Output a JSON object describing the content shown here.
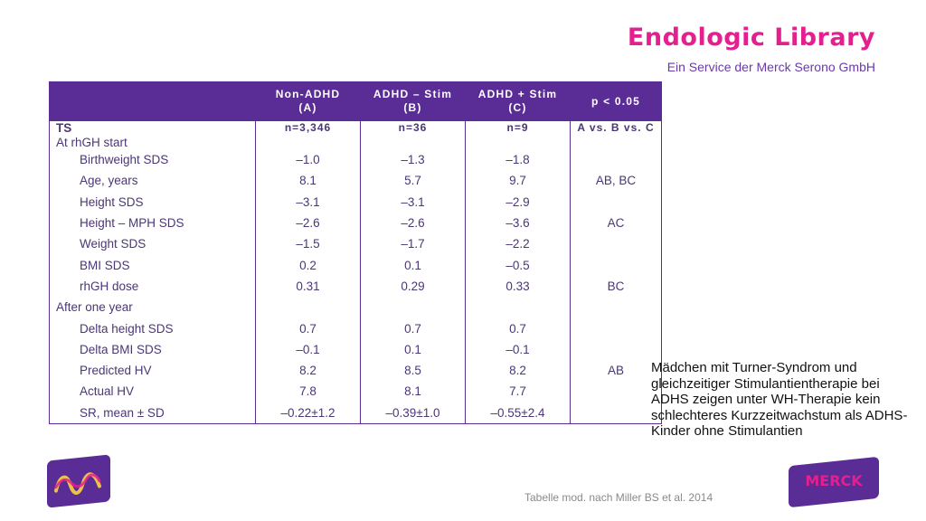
{
  "brand": "Endologic Library",
  "subtitle": "Ein Service der Merck Serono GmbH",
  "table": {
    "headers": [
      {
        "l1": "Non-ADHD",
        "l2": "(A)"
      },
      {
        "l1": "ADHD – Stim",
        "l2": "(B)"
      },
      {
        "l1": "ADHD + Stim",
        "l2": "(C)"
      },
      {
        "l1": "p < 0.05",
        "l2": ""
      }
    ],
    "subheader": {
      "label": "TS",
      "sub": "At rhGH start",
      "n": [
        "n=3,346",
        "n=36",
        "n=9"
      ],
      "p": "A vs. B vs. C"
    },
    "rows": [
      {
        "label": "Birthweight SDS",
        "a": "–1.0",
        "b": "–1.3",
        "c": "–1.8",
        "p": ""
      },
      {
        "label": "Age, years",
        "a": "8.1",
        "b": "5.7",
        "c": "9.7",
        "p": "AB, BC"
      },
      {
        "label": "Height SDS",
        "a": "–3.1",
        "b": "–3.1",
        "c": "–2.9",
        "p": ""
      },
      {
        "label": "Height – MPH SDS",
        "a": "–2.6",
        "b": "–2.6",
        "c": "–3.6",
        "p": "AC"
      },
      {
        "label": "Weight SDS",
        "a": "–1.5",
        "b": "–1.7",
        "c": "–2.2",
        "p": ""
      },
      {
        "label": "BMI SDS",
        "a": "0.2",
        "b": "0.1",
        "c": "–0.5",
        "p": ""
      },
      {
        "label": "rhGH dose",
        "a": "0.31",
        "b": "0.29",
        "c": "0.33",
        "p": "BC"
      }
    ],
    "section2": "After one year",
    "rows2": [
      {
        "label": "Delta height SDS",
        "a": "0.7",
        "b": "0.7",
        "c": "0.7",
        "p": ""
      },
      {
        "label": "Delta BMI SDS",
        "a": "–0.1",
        "b": "0.1",
        "c": "–0.1",
        "p": ""
      },
      {
        "label": "Predicted HV",
        "a": "8.2",
        "b": "8.5",
        "c": "8.2",
        "p": "AB"
      },
      {
        "label": "Actual HV",
        "a": "7.8",
        "b": "8.1",
        "c": "7.7",
        "p": ""
      },
      {
        "label": "SR, mean ± SD",
        "a": "–0.22±1.2",
        "b": "–0.39±1.0",
        "c": "–0.55±2.4",
        "p": ""
      }
    ]
  },
  "side_text": "Mädchen mit Turner-Syndrom und gleichzeitiger Stimulantientherapie bei ADHS zeigen unter WH-Therapie kein schlechteres Kurzzeitwachstum als ADHS-Kinder ohne Stimulantien",
  "footnote": "Tabelle mod. nach Miller BS et al. 2014",
  "logo_right_text": "MERCK"
}
